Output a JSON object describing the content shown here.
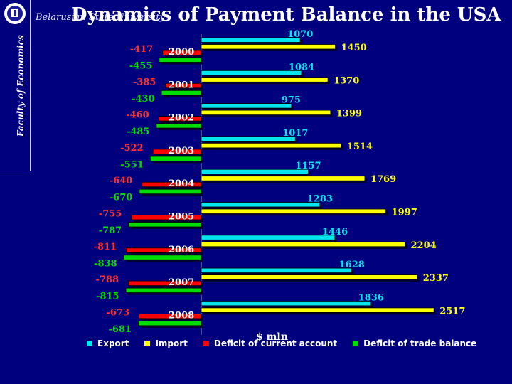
{
  "header": {
    "title": "Dynamics of Payment Balance in the USA",
    "university": "Belarusian State University",
    "faculty": "Faculty of Economics"
  },
  "colors": {
    "background": "#00007f",
    "export": "#00e5ee",
    "import": "#ffff00",
    "deficit_current_account": "#ff0000",
    "deficit_trade_balance": "#00dd00"
  },
  "chart_data": {
    "type": "bar",
    "orientation": "horizontal",
    "title": "Dynamics of Payment Balance in the USA",
    "xlabel": "$ mln",
    "categories": [
      "2000",
      "2001",
      "2002",
      "2003",
      "2004",
      "2005",
      "2006",
      "2007",
      "2008"
    ],
    "series": [
      {
        "name": "Export",
        "color": "#00e5ee",
        "values": [
          1070,
          1084,
          975,
          1017,
          1157,
          1283,
          1446,
          1628,
          1836
        ]
      },
      {
        "name": "Import",
        "color": "#ffff00",
        "values": [
          1450,
          1370,
          1399,
          1514,
          1769,
          1997,
          2204,
          2337,
          2517
        ]
      },
      {
        "name": "Deficit of current account",
        "color": "#ff0000",
        "values": [
          -417,
          -385,
          -460,
          -522,
          -640,
          -755,
          -811,
          -788,
          -673
        ]
      },
      {
        "name": "Deficit of trade balance",
        "color": "#00dd00",
        "values": [
          -455,
          -430,
          -485,
          -551,
          -670,
          -787,
          -838,
          -815,
          -681
        ]
      }
    ],
    "legend_position": "bottom",
    "grid": false
  }
}
